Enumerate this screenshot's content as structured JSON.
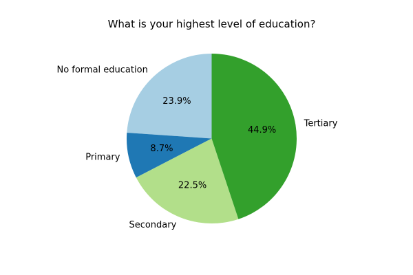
{
  "chart_data": {
    "type": "pie",
    "title": "What is your highest level of education?",
    "categories": [
      "No formal education",
      "Primary",
      "Secondary",
      "Tertiary"
    ],
    "values": [
      23.9,
      8.7,
      22.5,
      44.9
    ],
    "value_labels": [
      "23.9%",
      "8.7%",
      "22.5%",
      "44.9%"
    ],
    "colors": [
      "#a6cee3",
      "#1f78b4",
      "#b2df8a",
      "#33a02c"
    ],
    "start_angle_deg": 90,
    "direction": "counterclockwise",
    "legend": "none"
  }
}
